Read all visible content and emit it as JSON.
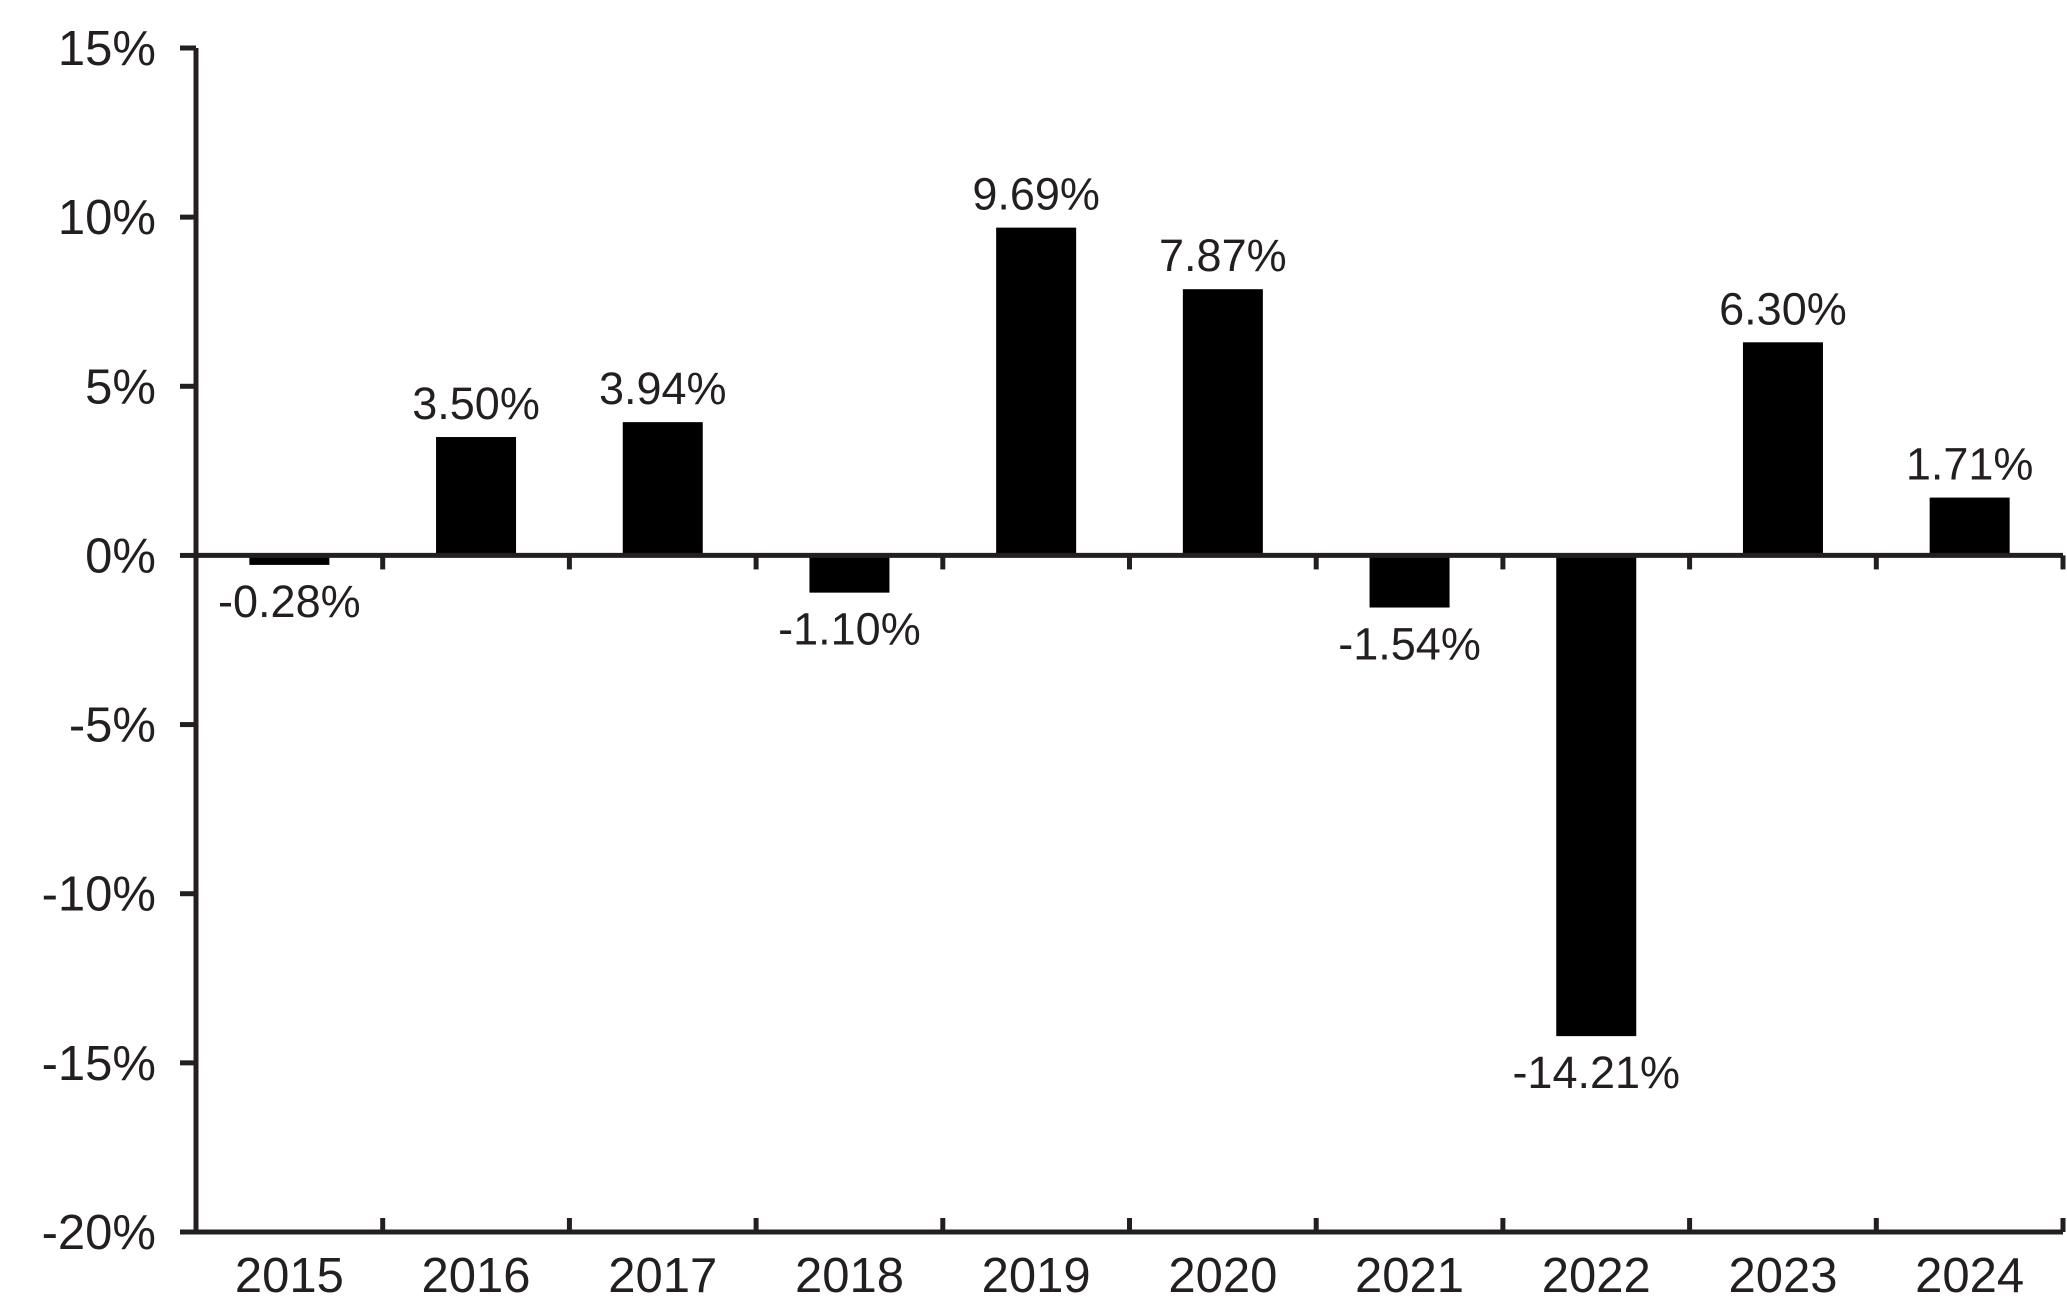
{
  "chart_data": {
    "type": "bar",
    "title": "",
    "xlabel": "",
    "ylabel": "",
    "categories": [
      "2015",
      "2016",
      "2017",
      "2018",
      "2019",
      "2020",
      "2021",
      "2022",
      "2023",
      "2024"
    ],
    "values": [
      -0.28,
      3.5,
      3.94,
      -1.1,
      9.69,
      7.87,
      -1.54,
      -14.21,
      6.3,
      1.71
    ],
    "data_labels": [
      "-0.28%",
      "3.50%",
      "3.94%",
      "-1.10%",
      "9.69%",
      "7.87%",
      "-1.54%",
      "-14.21%",
      "6.30%",
      "1.71%"
    ],
    "ylim": [
      -20,
      15
    ],
    "yticks": [
      15,
      10,
      5,
      0,
      -5,
      -10,
      -15,
      -20
    ],
    "ytick_labels": [
      "15%",
      "10%",
      "5%",
      "0%",
      "-5%",
      "-10%",
      "-15%",
      "-20%"
    ],
    "grid": false,
    "legend": "none",
    "colors": {
      "bar": "#000000",
      "axis": "#231f20",
      "text": "#231f20"
    }
  }
}
